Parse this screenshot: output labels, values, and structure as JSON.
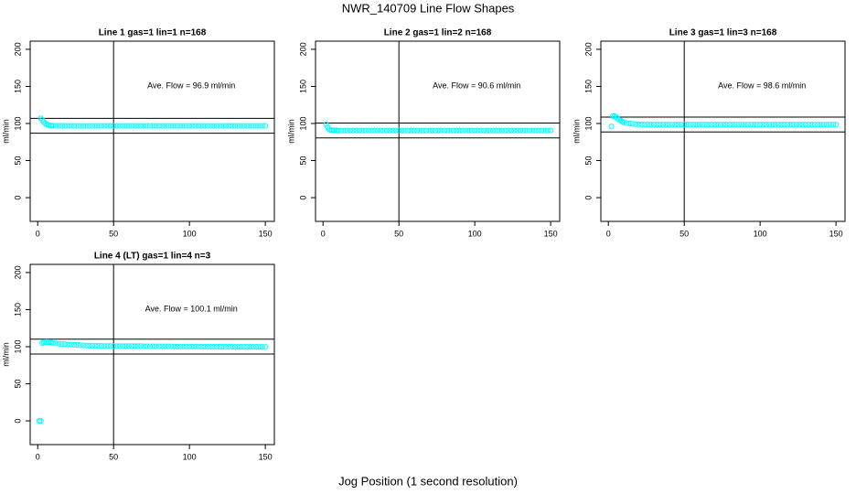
{
  "title": "NWR_140709  Line Flow Shapes",
  "x_label": "Jog Position (1 second resolution)",
  "chart_data": [
    {
      "type": "scatter",
      "title": "Line 1 gas=1 lin=1 n=168",
      "ylabel": "ml/min",
      "annotation": "Ave. Flow =  96.9  ml/min",
      "color": "#00ffff",
      "xlim": [
        -4.96,
        155.96
      ],
      "ylim": [
        -32,
        211
      ],
      "xticks": [
        0,
        50,
        100,
        150
      ],
      "yticks": [
        0,
        50,
        100,
        150,
        200
      ],
      "hlines": [
        106.9,
        86.9
      ],
      "vline": 50,
      "x": [
        2,
        3,
        4,
        5,
        6,
        7,
        8,
        9,
        10,
        12,
        14,
        16,
        18,
        20,
        22,
        24,
        26,
        28,
        30,
        32,
        34,
        36,
        38,
        40,
        42,
        44,
        46,
        48,
        50,
        52,
        54,
        56,
        58,
        60,
        62,
        64,
        66,
        68,
        70,
        72,
        74,
        76,
        78,
        80,
        82,
        84,
        86,
        88,
        90,
        92,
        94,
        96,
        98,
        100,
        102,
        104,
        106,
        108,
        110,
        112,
        114,
        116,
        118,
        120,
        122,
        124,
        126,
        128,
        130,
        132,
        134,
        136,
        138,
        140,
        142,
        144,
        146,
        148,
        150
      ],
      "values": [
        107,
        105,
        102,
        100,
        98.5,
        97.8,
        97.3,
        97.1,
        97,
        97,
        96.9,
        96.9,
        96.9,
        96.8,
        96.8,
        96.8,
        96.8,
        96.8,
        96.8,
        96.8,
        96.8,
        96.8,
        96.8,
        96.8,
        96.8,
        96.8,
        96.8,
        96.8,
        96.8,
        96.8,
        96.8,
        96.8,
        96.8,
        96.8,
        96.8,
        96.8,
        96.8,
        96.8,
        96.8,
        96.8,
        96.8,
        96.8,
        96.8,
        96.8,
        96.8,
        96.8,
        96.8,
        96.8,
        96.8,
        96.8,
        96.8,
        96.8,
        96.8,
        96.8,
        96.8,
        96.8,
        96.8,
        96.8,
        96.8,
        96.8,
        96.8,
        96.8,
        96.8,
        96.8,
        96.8,
        96.8,
        96.8,
        96.8,
        96.8,
        96.8,
        96.8,
        96.8,
        96.8,
        96.8,
        96.8,
        96.8,
        96.8,
        96.8,
        96.8
      ]
    },
    {
      "type": "scatter",
      "title": "Line 2 gas=1 lin=2 n=168",
      "ylabel": "ml/min",
      "annotation": "Ave. Flow =  90.6  ml/min",
      "color": "#00ffff",
      "xlim": [
        -4.96,
        155.96
      ],
      "ylim": [
        -32,
        211
      ],
      "xticks": [
        0,
        50,
        100,
        150
      ],
      "yticks": [
        0,
        50,
        100,
        150,
        200
      ],
      "hlines": [
        100.6,
        80.6
      ],
      "vline": 50,
      "x": [
        2,
        3,
        4,
        5,
        6,
        7,
        8,
        9,
        10,
        12,
        14,
        16,
        18,
        20,
        22,
        24,
        26,
        28,
        30,
        32,
        34,
        36,
        38,
        40,
        42,
        44,
        46,
        48,
        50,
        52,
        54,
        56,
        58,
        60,
        62,
        64,
        66,
        68,
        70,
        72,
        74,
        76,
        78,
        80,
        82,
        84,
        86,
        88,
        90,
        92,
        94,
        96,
        98,
        100,
        102,
        104,
        106,
        108,
        110,
        112,
        114,
        116,
        118,
        120,
        122,
        124,
        126,
        128,
        130,
        132,
        134,
        136,
        138,
        140,
        142,
        144,
        146,
        148,
        150
      ],
      "values": [
        99,
        95,
        92,
        91,
        90.8,
        90.7,
        90.6,
        90.6,
        90.5,
        90.5,
        90.5,
        90.5,
        90.5,
        90.5,
        90.5,
        90.5,
        90.5,
        90.5,
        90.5,
        90.5,
        90.5,
        90.5,
        90.5,
        90.5,
        90.5,
        90.5,
        90.5,
        90.5,
        90.5,
        90.5,
        90.5,
        90.5,
        90.5,
        90.5,
        90.5,
        90.5,
        90.5,
        90.5,
        90.5,
        90.5,
        90.5,
        90.5,
        90.5,
        90.5,
        90.5,
        90.5,
        90.5,
        90.5,
        90.5,
        90.5,
        90.5,
        90.5,
        90.5,
        90.5,
        90.5,
        90.5,
        90.5,
        90.5,
        90.5,
        90.5,
        90.5,
        90.5,
        90.5,
        90.5,
        90.5,
        90.5,
        90.5,
        90.5,
        90.5,
        90.5,
        90.5,
        90.5,
        90.5,
        90.5,
        90.5,
        90.5,
        90.5,
        90.5,
        90.5
      ]
    },
    {
      "type": "scatter",
      "title": "Line 3 gas=1 lin=3 n=168",
      "ylabel": "ml/min",
      "annotation": "Ave. Flow =  98.6  ml/min",
      "color": "#00ffff",
      "xlim": [
        -4.96,
        155.96
      ],
      "ylim": [
        -32,
        211
      ],
      "xticks": [
        0,
        50,
        100,
        150
      ],
      "yticks": [
        0,
        50,
        100,
        150,
        200
      ],
      "hlines": [
        108.6,
        88.6
      ],
      "vline": 50,
      "x": [
        2,
        3,
        4,
        5,
        6,
        7,
        8,
        9,
        10,
        12,
        14,
        16,
        18,
        20,
        22,
        24,
        26,
        28,
        30,
        32,
        34,
        36,
        38,
        40,
        42,
        44,
        46,
        48,
        50,
        52,
        54,
        56,
        58,
        60,
        62,
        64,
        66,
        68,
        70,
        72,
        74,
        76,
        78,
        80,
        82,
        84,
        86,
        88,
        90,
        92,
        94,
        96,
        98,
        100,
        102,
        104,
        106,
        108,
        110,
        112,
        114,
        116,
        118,
        120,
        122,
        124,
        126,
        128,
        130,
        132,
        134,
        136,
        138,
        140,
        142,
        144,
        146,
        148,
        150
      ],
      "values": [
        96,
        110,
        110,
        109,
        107,
        105,
        104,
        103,
        101.5,
        100.5,
        100,
        99.5,
        99.2,
        99,
        98.8,
        98.7,
        98.6,
        98.5,
        98.4,
        98.4,
        98.4,
        98.4,
        98.4,
        98.4,
        98.4,
        98.4,
        98.4,
        98.4,
        98.4,
        98.4,
        98.4,
        98.4,
        98.4,
        98.4,
        98.4,
        98.4,
        98.4,
        98.4,
        98.4,
        98.4,
        98.4,
        98.4,
        98.4,
        98.4,
        98.4,
        98.4,
        98.4,
        98.4,
        98.4,
        98.4,
        98.4,
        98.4,
        98.4,
        98.4,
        98.4,
        98.4,
        98.4,
        98.4,
        98.4,
        98.4,
        98.4,
        98.4,
        98.4,
        98.4,
        98.4,
        98.4,
        98.4,
        98.4,
        98.4,
        98.4,
        98.4,
        98.4,
        98.4,
        98.4,
        98.4,
        98.4,
        98.4,
        98.4,
        98.4
      ]
    },
    {
      "type": "scatter",
      "title": "Line 4 (LT) gas=1 lin=4 n=3",
      "ylabel": "ml/min",
      "annotation": "Ave. Flow =  100.1  ml/min",
      "color": "#00ffff",
      "xlim": [
        -4.96,
        155.96
      ],
      "ylim": [
        -32,
        211
      ],
      "xticks": [
        0,
        50,
        100,
        150
      ],
      "yticks": [
        0,
        50,
        100,
        150,
        200
      ],
      "hlines": [
        110.1,
        90.1
      ],
      "vline": 50,
      "x": [
        1,
        2,
        3,
        4,
        5,
        6,
        7,
        8,
        9,
        10,
        12,
        14,
        16,
        18,
        20,
        22,
        24,
        26,
        28,
        30,
        32,
        34,
        36,
        38,
        40,
        42,
        44,
        46,
        48,
        50,
        52,
        54,
        56,
        58,
        60,
        62,
        64,
        66,
        68,
        70,
        72,
        74,
        76,
        78,
        80,
        82,
        84,
        86,
        88,
        90,
        92,
        94,
        96,
        98,
        100,
        102,
        104,
        106,
        108,
        110,
        112,
        114,
        116,
        118,
        120,
        122,
        124,
        126,
        128,
        130,
        132,
        134,
        136,
        138,
        140,
        142,
        144,
        146,
        148,
        150
      ],
      "values": [
        0,
        0,
        105,
        106,
        106,
        106.5,
        106,
        106,
        105.5,
        105,
        104.5,
        104,
        103.5,
        103.5,
        103,
        103,
        102.5,
        102.5,
        102,
        101.8,
        101.6,
        101.5,
        101.4,
        101.3,
        101.2,
        101.1,
        101,
        101,
        100.9,
        100.8,
        100.8,
        100.8,
        100.8,
        100.8,
        100.8,
        100.8,
        100.8,
        100.8,
        100.8,
        100.5,
        100.5,
        100.5,
        100.5,
        100.5,
        100.5,
        100.5,
        100.5,
        100.5,
        100.5,
        100.2,
        100.2,
        100.2,
        100.2,
        100.2,
        100.2,
        100.2,
        100.2,
        100.2,
        100.2,
        100,
        100,
        100,
        100,
        100,
        100,
        100,
        100,
        100,
        100,
        99.8,
        99.8,
        99.8,
        99.8,
        99.8,
        99.8,
        99.8,
        99.8,
        99.8,
        99.8,
        99.7
      ]
    }
  ]
}
